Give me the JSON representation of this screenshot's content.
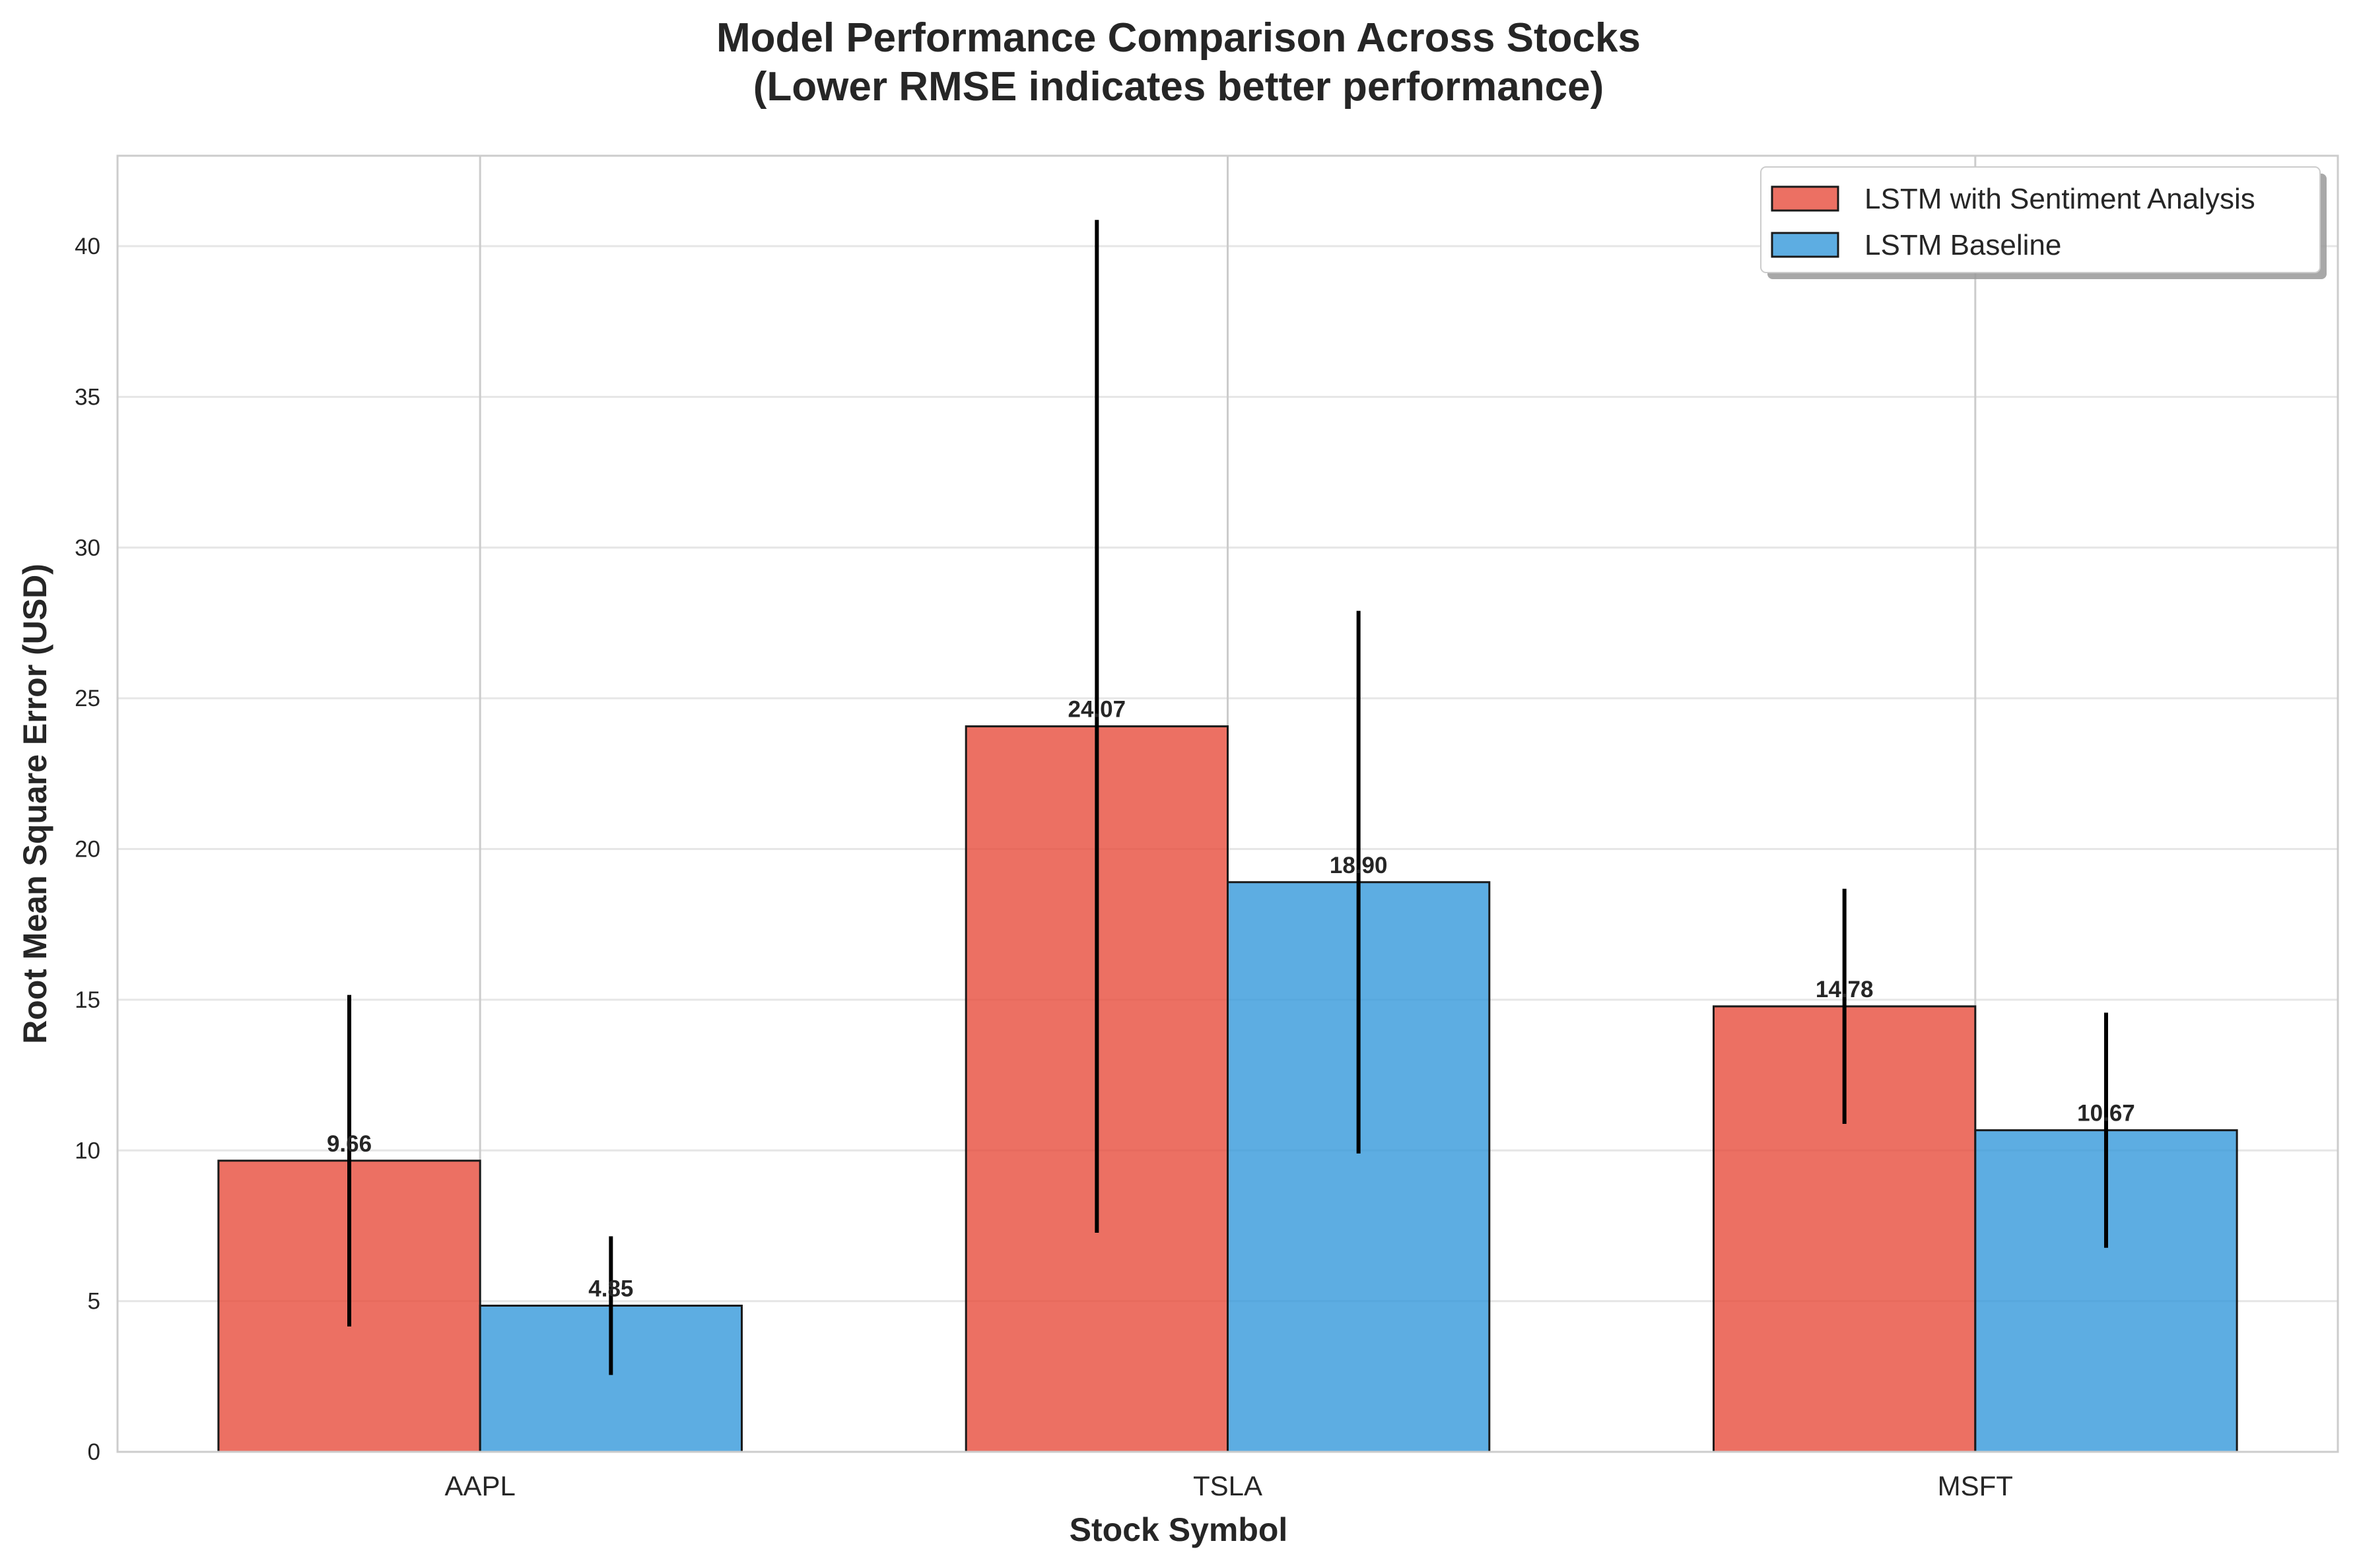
{
  "chart_data": {
    "type": "bar",
    "title_lines": [
      "Model Performance Comparison Across Stocks",
      "(Lower RMSE indicates better performance)"
    ],
    "xlabel": "Stock Symbol",
    "ylabel": "Root Mean Square Error (USD)",
    "categories": [
      "AAPL",
      "TSLA",
      "MSFT"
    ],
    "ylim": [
      0,
      43
    ],
    "yticks": [
      0,
      5,
      10,
      15,
      20,
      25,
      30,
      35,
      40
    ],
    "grid": true,
    "legend_position": "top-right",
    "series": [
      {
        "name": "LSTM with Sentiment Analysis",
        "color": "#e74c3c",
        "values": [
          9.66,
          24.07,
          14.78
        ],
        "labels": [
          "9.66",
          "24.07",
          "14.78"
        ],
        "error": [
          5.5,
          16.8,
          3.9
        ]
      },
      {
        "name": "LSTM Baseline",
        "color": "#3498db",
        "values": [
          4.85,
          18.9,
          10.67
        ],
        "labels": [
          "4.85",
          "18.90",
          "10.67"
        ],
        "error": [
          2.3,
          9.0,
          3.9
        ]
      }
    ]
  }
}
